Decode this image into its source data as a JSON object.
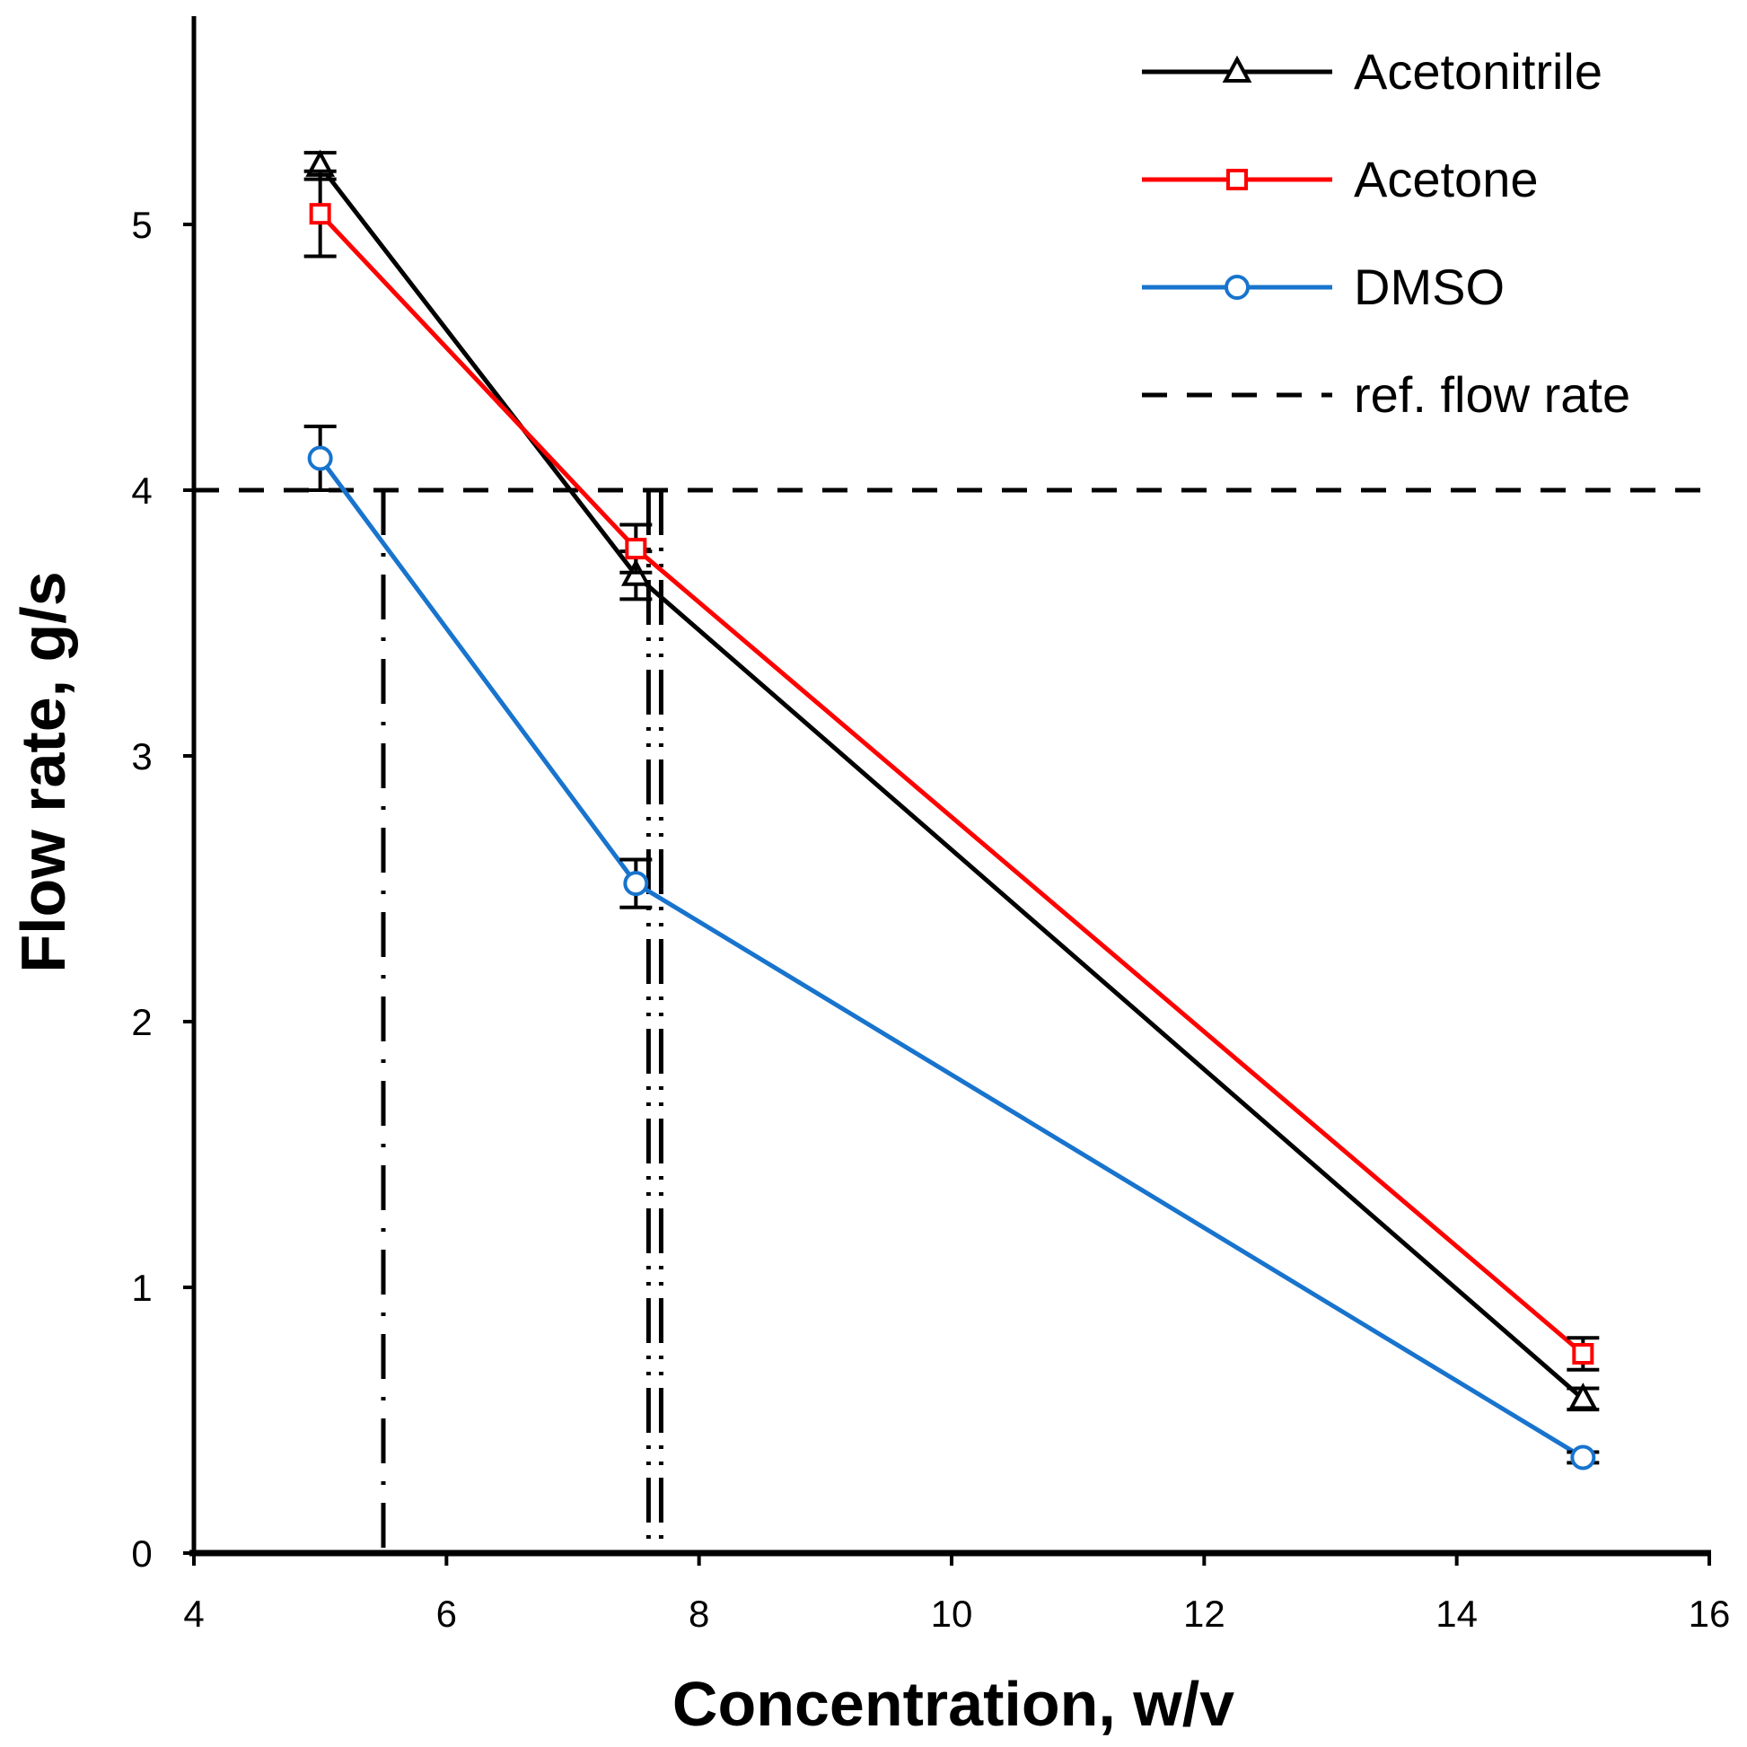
{
  "chart_data": {
    "type": "line",
    "title": "",
    "xlabel": "Concentration, w/v",
    "ylabel": "Flow rate, g/s",
    "xlim": [
      4,
      16
    ],
    "ylim": [
      0,
      5.8
    ],
    "xticks": [
      4,
      6,
      8,
      10,
      12,
      14,
      16
    ],
    "yticks": [
      0,
      1,
      2,
      3,
      4,
      5
    ],
    "grid": false,
    "legend_position": "top-right",
    "series": [
      {
        "name": "Acetonitrile",
        "color": "#000000",
        "marker": "triangle",
        "x": [
          5,
          7.5,
          15
        ],
        "y": [
          5.22,
          3.68,
          0.58
        ],
        "err": [
          0.05,
          0.09,
          0.04
        ]
      },
      {
        "name": "Acetone",
        "color": "#ff0000",
        "marker": "square",
        "x": [
          5,
          7.5,
          15
        ],
        "y": [
          5.04,
          3.78,
          0.75
        ],
        "err": [
          0.16,
          0.09,
          0.06
        ]
      },
      {
        "name": "DMSO",
        "color": "#1874cd",
        "marker": "circle",
        "x": [
          5,
          7.5,
          15
        ],
        "y": [
          4.12,
          2.52,
          0.36
        ],
        "err": [
          0.12,
          0.09,
          0.02
        ]
      }
    ],
    "reference": {
      "name": "ref. flow rate",
      "y": 4
    },
    "intercepts": [
      {
        "x": 5.5,
        "style": "dash-dot"
      },
      {
        "x": 7.6,
        "style": "dash-dot-dot"
      },
      {
        "x": 7.7,
        "style": "dash-dot-dot"
      }
    ]
  }
}
